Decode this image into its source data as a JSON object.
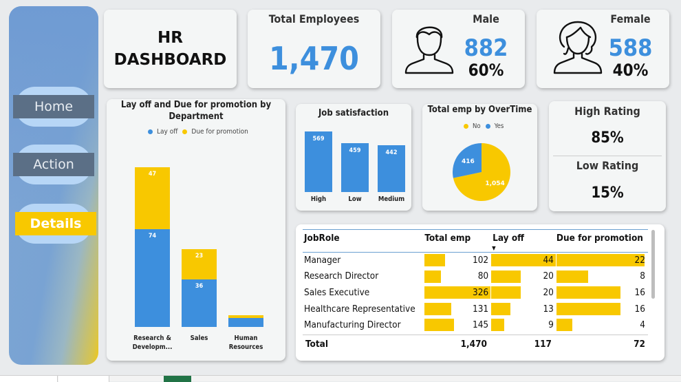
{
  "nav": {
    "home": "Home",
    "action": "Action",
    "details": "Details"
  },
  "title": {
    "line1": "HR",
    "line2": "DASHBOARD"
  },
  "kpi": {
    "total_label": "Total Employees",
    "total_value": "1,470",
    "male_label": "Male",
    "male_value": "882",
    "male_pct": "60%",
    "female_label": "Female",
    "female_value": "588",
    "female_pct": "40%"
  },
  "rating": {
    "high_label": "High Rating",
    "high_value": "85%",
    "low_label": "Low Rating",
    "low_value": "15%"
  },
  "colors": {
    "blue": "#3d8fdd",
    "yellow": "#f8c800"
  },
  "charts": {
    "layoff_title": "Lay off and Due for promotion by Department",
    "layoff_legend": [
      "Lay off",
      "Due for promotion"
    ],
    "job_title": "Job satisfaction",
    "ot_title": "Total emp by OverTime",
    "ot_legend": [
      "No",
      "Yes"
    ]
  },
  "chart_data": [
    {
      "type": "bar",
      "title": "Lay off and Due for promotion by Department",
      "categories": [
        "Research & Developm...",
        "Sales",
        "Human Resources"
      ],
      "series": [
        {
          "name": "Lay off",
          "values": [
            74,
            36,
            7
          ]
        },
        {
          "name": "Due for promotion",
          "values": [
            47,
            23,
            2
          ]
        }
      ],
      "stacked": true
    },
    {
      "type": "bar",
      "title": "Job satisfaction",
      "categories": [
        "High",
        "Low",
        "Medium"
      ],
      "values": [
        569,
        459,
        442
      ]
    },
    {
      "type": "pie",
      "title": "Total emp by OverTime",
      "categories": [
        "No",
        "Yes"
      ],
      "values": [
        1054,
        416
      ]
    }
  ],
  "table": {
    "headers": [
      "JobRole",
      "Total emp",
      "Lay off",
      "Due for promotion"
    ],
    "rows": [
      {
        "role": "Manager",
        "total": 102,
        "layoff": 44,
        "promo": 22
      },
      {
        "role": "Research Director",
        "total": 80,
        "layoff": 20,
        "promo": 8
      },
      {
        "role": "Sales Executive",
        "total": 326,
        "layoff": 20,
        "promo": 16
      },
      {
        "role": "Healthcare Representative",
        "total": 131,
        "layoff": 13,
        "promo": 16
      },
      {
        "role": "Manufacturing Director",
        "total": 145,
        "layoff": 9,
        "promo": 4
      }
    ],
    "totals": {
      "label": "Total",
      "total": "1,470",
      "layoff": "117",
      "promo": "72"
    }
  }
}
